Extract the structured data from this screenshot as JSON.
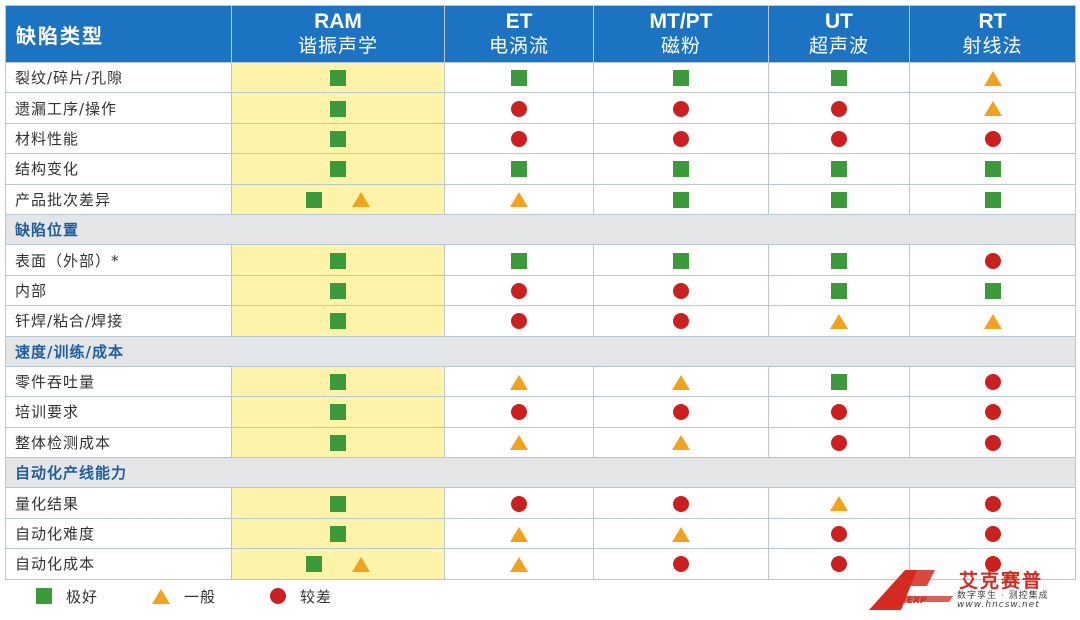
{
  "header": {
    "first": "缺陷类型",
    "methods": [
      {
        "code": "RAM",
        "name": "谐振声学"
      },
      {
        "code": "ET",
        "name": "电涡流"
      },
      {
        "code": "MT/PT",
        "name": "磁粉"
      },
      {
        "code": "UT",
        "name": "超声波"
      },
      {
        "code": "RT",
        "name": "射线法"
      }
    ]
  },
  "sections": [
    {
      "title": "",
      "rows": [
        {
          "label": "裂纹/碎片/孔隙",
          "cells": [
            [
              "square"
            ],
            [
              "square"
            ],
            [
              "square"
            ],
            [
              "square"
            ],
            [
              "triangle"
            ]
          ]
        },
        {
          "label": "遗漏工序/操作",
          "cells": [
            [
              "square"
            ],
            [
              "circle"
            ],
            [
              "circle"
            ],
            [
              "circle"
            ],
            [
              "triangle"
            ]
          ]
        },
        {
          "label": "材料性能",
          "cells": [
            [
              "square"
            ],
            [
              "circle"
            ],
            [
              "circle"
            ],
            [
              "circle"
            ],
            [
              "circle"
            ]
          ]
        },
        {
          "label": "结构变化",
          "cells": [
            [
              "square"
            ],
            [
              "square"
            ],
            [
              "square"
            ],
            [
              "square"
            ],
            [
              "square"
            ]
          ]
        },
        {
          "label": "产品批次差异",
          "cells": [
            [
              "square",
              "triangle"
            ],
            [
              "triangle"
            ],
            [
              "square"
            ],
            [
              "square"
            ],
            [
              "square"
            ]
          ]
        }
      ]
    },
    {
      "title": "缺陷位置",
      "rows": [
        {
          "label": "表面（外部）*",
          "cells": [
            [
              "square"
            ],
            [
              "square"
            ],
            [
              "square"
            ],
            [
              "square"
            ],
            [
              "circle"
            ]
          ]
        },
        {
          "label": "内部",
          "cells": [
            [
              "square"
            ],
            [
              "circle"
            ],
            [
              "circle"
            ],
            [
              "square"
            ],
            [
              "square"
            ]
          ]
        },
        {
          "label": "钎焊/粘合/焊接",
          "cells": [
            [
              "square"
            ],
            [
              "circle"
            ],
            [
              "circle"
            ],
            [
              "triangle"
            ],
            [
              "triangle"
            ]
          ]
        }
      ]
    },
    {
      "title": "速度/训练/成本",
      "rows": [
        {
          "label": "零件吞吐量",
          "cells": [
            [
              "square"
            ],
            [
              "triangle"
            ],
            [
              "triangle"
            ],
            [
              "square"
            ],
            [
              "circle"
            ]
          ]
        },
        {
          "label": "培训要求",
          "cells": [
            [
              "square"
            ],
            [
              "circle"
            ],
            [
              "circle"
            ],
            [
              "circle"
            ],
            [
              "circle"
            ]
          ]
        },
        {
          "label": "整体检测成本",
          "cells": [
            [
              "square"
            ],
            [
              "triangle"
            ],
            [
              "triangle"
            ],
            [
              "circle"
            ],
            [
              "circle"
            ]
          ]
        }
      ]
    },
    {
      "title": "自动化产线能力",
      "rows": [
        {
          "label": "量化结果",
          "cells": [
            [
              "square"
            ],
            [
              "circle"
            ],
            [
              "circle"
            ],
            [
              "triangle"
            ],
            [
              "circle"
            ]
          ]
        },
        {
          "label": "自动化难度",
          "cells": [
            [
              "square"
            ],
            [
              "triangle"
            ],
            [
              "triangle"
            ],
            [
              "circle"
            ],
            [
              "circle"
            ]
          ]
        },
        {
          "label": "自动化成本",
          "cells": [
            [
              "square",
              "triangle"
            ],
            [
              "triangle"
            ],
            [
              "circle"
            ],
            [
              "circle"
            ],
            [
              "circle"
            ]
          ]
        }
      ]
    }
  ],
  "legend": [
    {
      "symbol": "square",
      "label": "极好"
    },
    {
      "symbol": "triangle",
      "label": "一般"
    },
    {
      "symbol": "circle",
      "label": "较差"
    }
  ],
  "symbols": {
    "square": {
      "icon": "green-square-icon",
      "color": "#3c9a3a"
    },
    "triangle": {
      "icon": "orange-triangle-icon",
      "color": "#f2a21b"
    },
    "circle": {
      "icon": "red-circle-icon",
      "color": "#cc1f1f"
    }
  },
  "colors": {
    "header_bg": "#1b73c2",
    "ram_column_bg": "#fdf4aa",
    "section_bg": "#e4e5e6",
    "section_text": "#1f5f9e"
  },
  "watermark": {
    "brand": "艾克赛普",
    "mark_text": "ACCEXP",
    "slogan": "数字孪生 · 测控集成",
    "url": "www.hncsw.net"
  }
}
